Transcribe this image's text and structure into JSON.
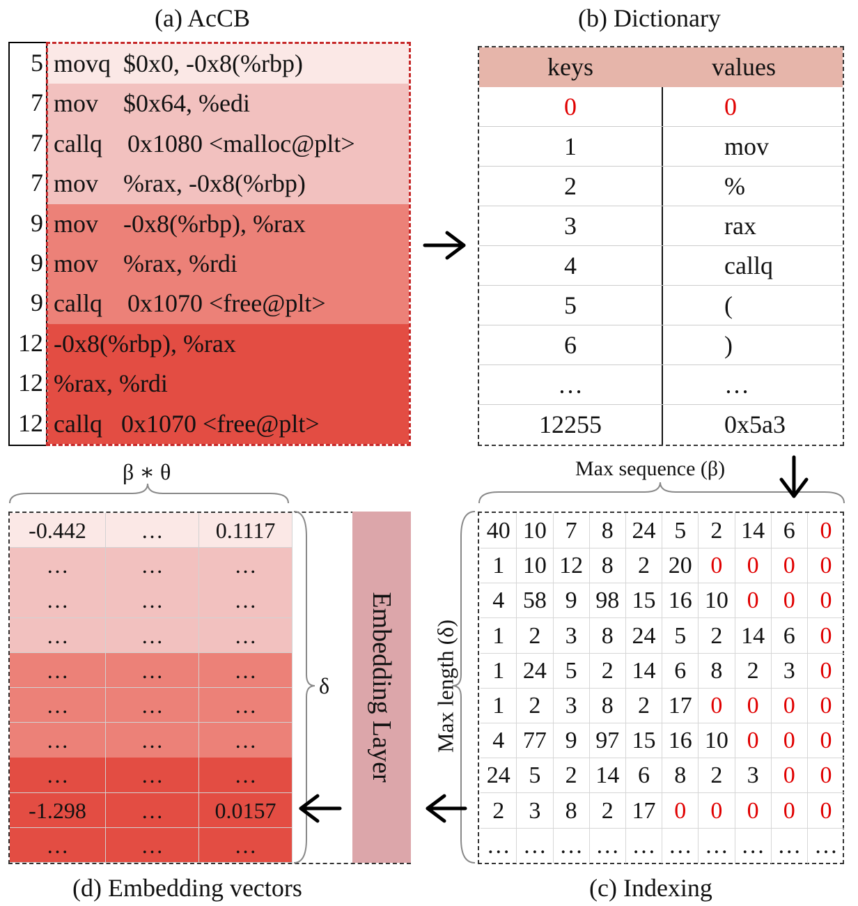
{
  "panel_a": {
    "caption": "(a) AcCB",
    "rows": [
      {
        "line": "5",
        "text": "movq  $0x0, -0x8(%rbp)",
        "bg": "#fbe8e6"
      },
      {
        "line": "7",
        "text": "mov    $0x64, %edi",
        "bg": "#f2c1bf"
      },
      {
        "line": "7",
        "text": "callq    0x1080 <malloc@plt>",
        "bg": "#f2c1bf"
      },
      {
        "line": "7",
        "text": "mov    %rax, -0x8(%rbp)",
        "bg": "#f2c1bf"
      },
      {
        "line": "9",
        "text": "mov    -0x8(%rbp), %rax",
        "bg": "#ec8178"
      },
      {
        "line": "9",
        "text": "mov    %rax, %rdi",
        "bg": "#ec8178"
      },
      {
        "line": "9",
        "text": "callq    0x1070 <free@plt>",
        "bg": "#ec8178"
      },
      {
        "line": "12",
        "text": "-0x8(%rbp), %rax",
        "bg": "#e34d43"
      },
      {
        "line": "12",
        "text": "%rax, %rdi",
        "bg": "#e34d43"
      },
      {
        "line": "12",
        "text": "callq   0x1070 <free@plt>",
        "bg": "#e34d43"
      }
    ]
  },
  "panel_b": {
    "caption": "(b) Dictionary",
    "header": {
      "keys": "keys",
      "values": "values"
    },
    "rows": [
      {
        "key": "0",
        "value": "0",
        "red": true
      },
      {
        "key": "1",
        "value": "mov"
      },
      {
        "key": "2",
        "value": "%"
      },
      {
        "key": "3",
        "value": "rax"
      },
      {
        "key": "4",
        "value": "callq"
      },
      {
        "key": "5",
        "value": "("
      },
      {
        "key": "6",
        "value": ")"
      },
      {
        "key": "…",
        "value": "…"
      },
      {
        "key": "12255",
        "value": "0x5a3"
      }
    ]
  },
  "panel_c": {
    "caption": "(c) Indexing",
    "top_label": "Max sequence (β)",
    "side_label": "Max length (δ)",
    "rows": [
      [
        "40",
        "10",
        "7",
        "8",
        "24",
        "5",
        "2",
        "14",
        "6",
        "0"
      ],
      [
        "1",
        "10",
        "12",
        "8",
        "2",
        "20",
        "0",
        "0",
        "0",
        "0"
      ],
      [
        "4",
        "58",
        "9",
        "98",
        "15",
        "16",
        "10",
        "0",
        "0",
        "0"
      ],
      [
        "1",
        "2",
        "3",
        "8",
        "24",
        "5",
        "2",
        "14",
        "6",
        "0"
      ],
      [
        "1",
        "24",
        "5",
        "2",
        "14",
        "6",
        "8",
        "2",
        "3",
        "0"
      ],
      [
        "1",
        "2",
        "3",
        "8",
        "2",
        "17",
        "0",
        "0",
        "0",
        "0"
      ],
      [
        "4",
        "77",
        "9",
        "97",
        "15",
        "16",
        "10",
        "0",
        "0",
        "0"
      ],
      [
        "24",
        "5",
        "2",
        "14",
        "6",
        "8",
        "2",
        "3",
        "0",
        "0"
      ],
      [
        "2",
        "3",
        "8",
        "2",
        "17",
        "0",
        "0",
        "0",
        "0",
        "0"
      ],
      [
        "…",
        "…",
        "…",
        "…",
        "…",
        "…",
        "…",
        "…",
        "…",
        "…"
      ]
    ],
    "red_zeros": [
      [
        9
      ],
      [
        6,
        7,
        8,
        9
      ],
      [
        7,
        8,
        9
      ],
      [
        9
      ],
      [
        9
      ],
      [
        6,
        7,
        8,
        9
      ],
      [
        7,
        8,
        9
      ],
      [
        8,
        9
      ],
      [
        5,
        6,
        7,
        8,
        9
      ],
      []
    ]
  },
  "panel_d": {
    "caption": "(d)  Embedding vectors",
    "top_label": "β ∗ θ",
    "side_label": "δ",
    "layer_label": "Embedding Layer",
    "rows": [
      {
        "cells": [
          "-0.442",
          "…",
          "0.1117"
        ],
        "bg": "#fbe8e6"
      },
      {
        "cells": [
          "…",
          "…",
          "…"
        ],
        "bg": "#f2c1bf"
      },
      {
        "cells": [
          "…",
          "…",
          "…"
        ],
        "bg": "#f2c1bf"
      },
      {
        "cells": [
          "…",
          "…",
          "…"
        ],
        "bg": "#f2c1bf"
      },
      {
        "cells": [
          "…",
          "…",
          "…"
        ],
        "bg": "#ec8178"
      },
      {
        "cells": [
          "…",
          "…",
          "…"
        ],
        "bg": "#ec8178"
      },
      {
        "cells": [
          "…",
          "…",
          "…"
        ],
        "bg": "#ec8178"
      },
      {
        "cells": [
          "…",
          "…",
          "…"
        ],
        "bg": "#e34d43"
      },
      {
        "cells": [
          "-1.298",
          "…",
          "0.0157"
        ],
        "bg": "#e34d43"
      },
      {
        "cells": [
          "…",
          "…",
          "…"
        ],
        "bg": "#e34d43"
      }
    ]
  }
}
